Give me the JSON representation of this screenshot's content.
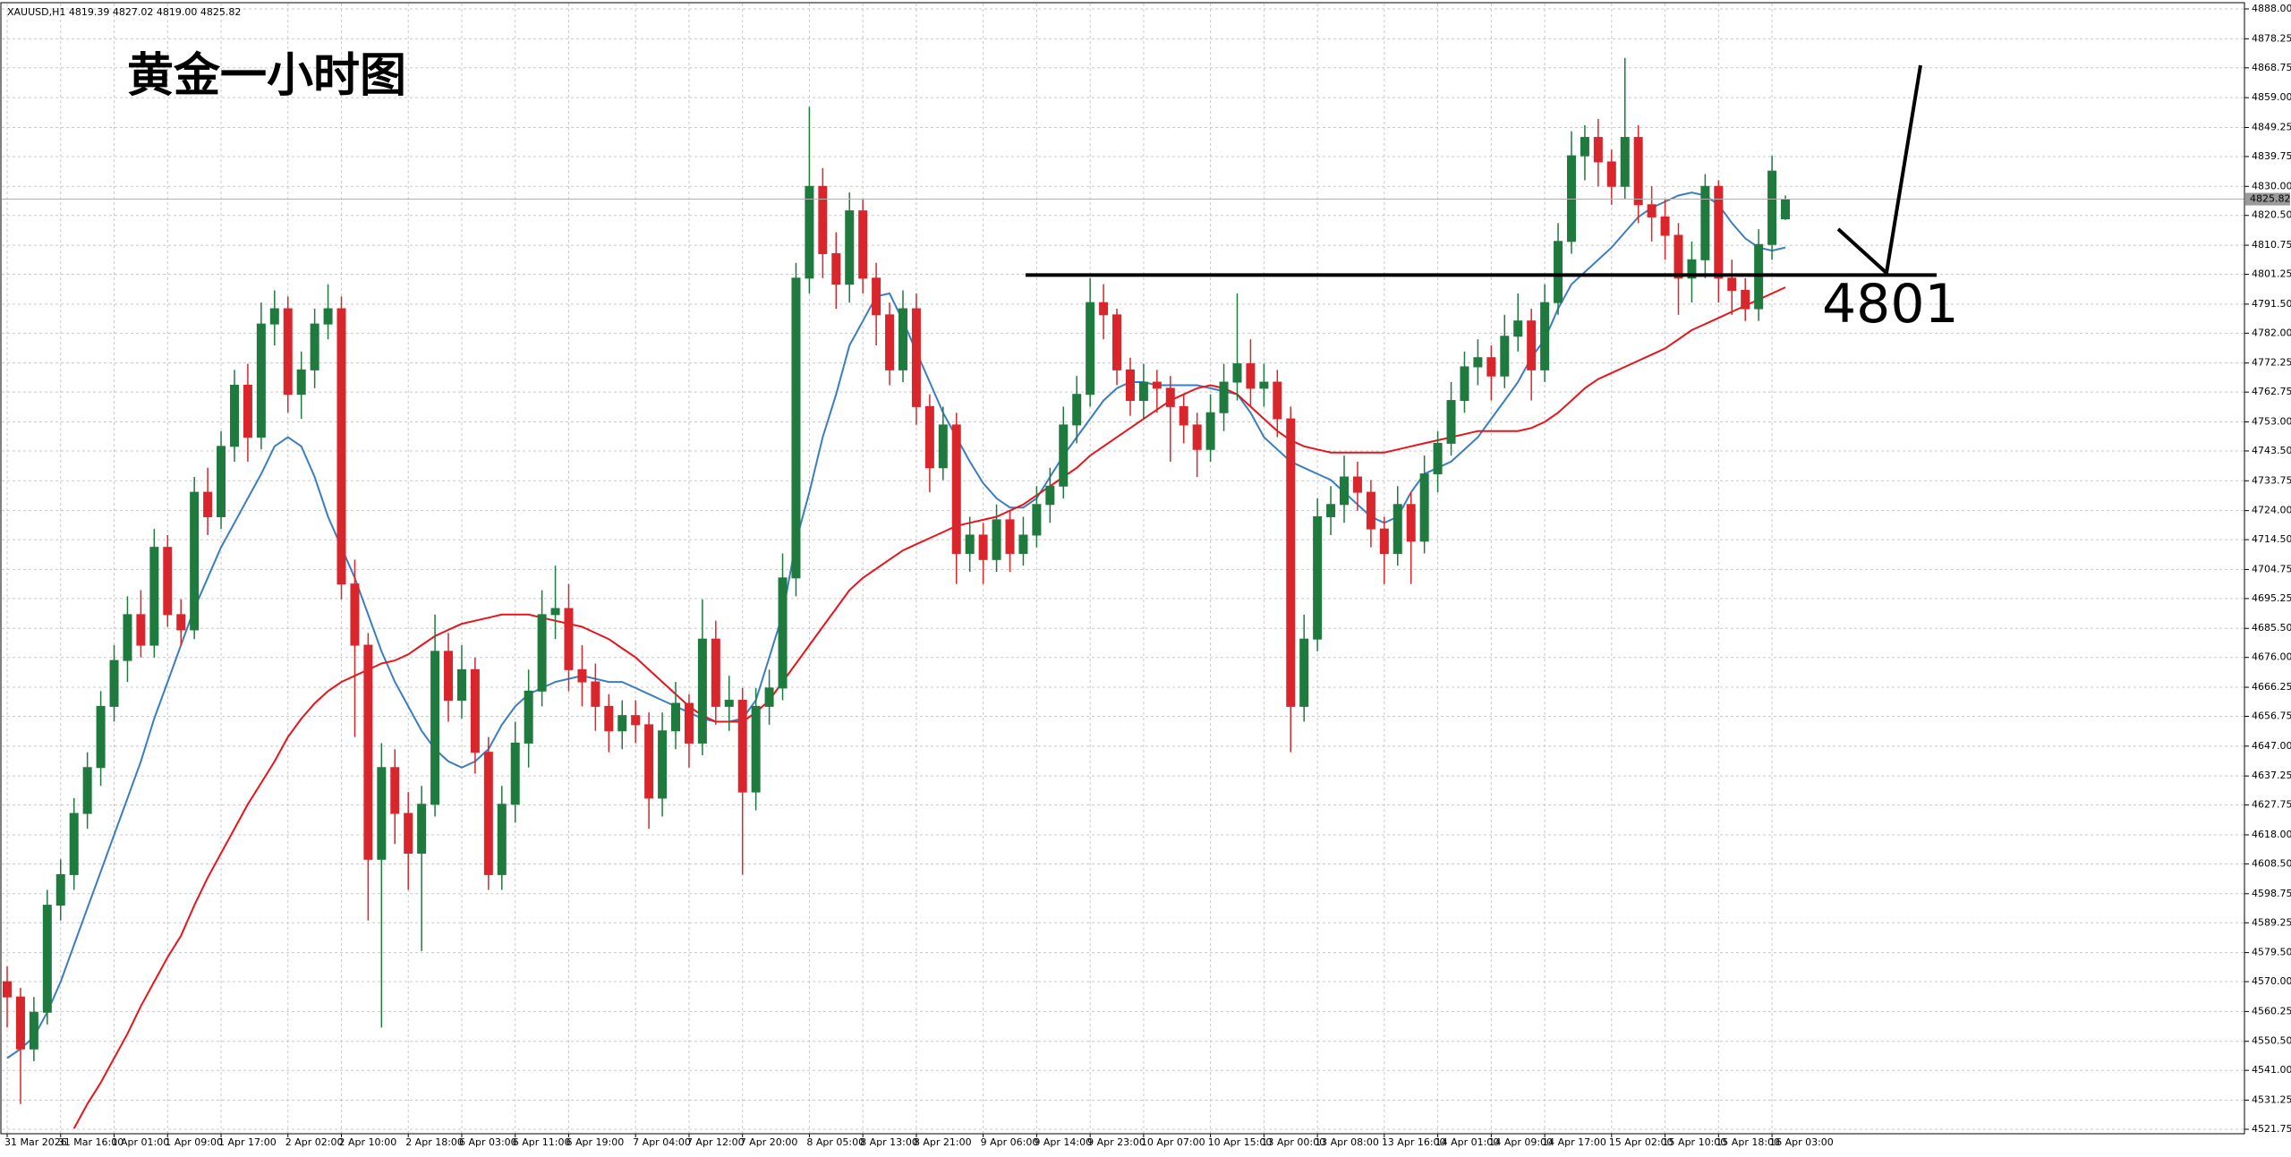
{
  "chart_data": {
    "type": "candlestick",
    "title": "黄金一小时图",
    "header": "XAUUSD,H1  4819.39 4827.02 4819.00 4825.82",
    "up_color": "#1f7a3e",
    "down_color": "#d8262c",
    "grid": true,
    "ylim": [
      4521.75,
      4888
    ],
    "yticks": [
      {
        "value": 4888,
        "label": "4888.00"
      },
      {
        "value": 4878.25,
        "label": "4878.25"
      },
      {
        "value": 4868.75,
        "label": "4868.75"
      },
      {
        "value": 4859,
        "label": "4859.00"
      },
      {
        "value": 4849.25,
        "label": "4849.25"
      },
      {
        "value": 4839.75,
        "label": "4839.75"
      },
      {
        "value": 4830,
        "label": "4830.00"
      },
      {
        "value": 4820.5,
        "label": "4820.50"
      },
      {
        "value": 4810.75,
        "label": "4810.75"
      },
      {
        "value": 4801.25,
        "label": "4801.25"
      },
      {
        "value": 4791.5,
        "label": "4791.50"
      },
      {
        "value": 4782,
        "label": "4782.00"
      },
      {
        "value": 4772.25,
        "label": "4772.25"
      },
      {
        "value": 4762.75,
        "label": "4762.75"
      },
      {
        "value": 4753,
        "label": "4753.00"
      },
      {
        "value": 4743.5,
        "label": "4743.50"
      },
      {
        "value": 4733.75,
        "label": "4733.75"
      },
      {
        "value": 4724,
        "label": "4724.00"
      },
      {
        "value": 4714.5,
        "label": "4714.50"
      },
      {
        "value": 4704.75,
        "label": "4704.75"
      },
      {
        "value": 4695.25,
        "label": "4695.25"
      },
      {
        "value": 4685.5,
        "label": "4685.50"
      },
      {
        "value": 4676,
        "label": "4676.00"
      },
      {
        "value": 4666.25,
        "label": "4666.25"
      },
      {
        "value": 4656.75,
        "label": "4656.75"
      },
      {
        "value": 4647,
        "label": "4647.00"
      },
      {
        "value": 4637.25,
        "label": "4637.25"
      },
      {
        "value": 4627.75,
        "label": "4627.75"
      },
      {
        "value": 4618,
        "label": "4618.00"
      },
      {
        "value": 4608.5,
        "label": "4608.50"
      },
      {
        "value": 4598.75,
        "label": "4598.75"
      },
      {
        "value": 4589.25,
        "label": "4589.25"
      },
      {
        "value": 4579.5,
        "label": "4579.50"
      },
      {
        "value": 4570,
        "label": "4570.00"
      },
      {
        "value": 4560.25,
        "label": "4560.25"
      },
      {
        "value": 4550.5,
        "label": "4550.50"
      },
      {
        "value": 4541,
        "label": "4541.00"
      },
      {
        "value": 4531.25,
        "label": "4531.25"
      },
      {
        "value": 4521.75,
        "label": "4521.75"
      }
    ],
    "categories": [
      "31 Mar 2026",
      null,
      null,
      null,
      "31 Mar 16:00",
      null,
      null,
      null,
      "1 Apr 01:00",
      null,
      null,
      null,
      "1 Apr 09:00",
      null,
      null,
      null,
      "1 Apr 17:00",
      null,
      null,
      null,
      null,
      "2 Apr 02:00",
      null,
      null,
      null,
      "2 Apr 10:00",
      null,
      null,
      null,
      null,
      "2 Apr 18:00",
      null,
      null,
      null,
      "6 Apr 03:00",
      null,
      null,
      null,
      "6 Apr 11:00",
      null,
      null,
      null,
      "6 Apr 19:00",
      null,
      null,
      null,
      null,
      "7 Apr 04:00",
      null,
      null,
      null,
      "7 Apr 12:00",
      null,
      null,
      null,
      "7 Apr 20:00",
      null,
      null,
      null,
      null,
      "8 Apr 05:00",
      null,
      null,
      null,
      "8 Apr 13:00",
      null,
      null,
      null,
      "8 Apr 21:00",
      null,
      null,
      null,
      null,
      "9 Apr 06:00",
      null,
      null,
      null,
      "9 Apr 14:00",
      null,
      null,
      null,
      "9 Apr 23:00",
      null,
      null,
      null,
      "10 Apr 07:00",
      null,
      null,
      null,
      null,
      "10 Apr 15:00",
      null,
      null,
      null,
      "13 Apr 00:00",
      null,
      null,
      null,
      "13 Apr 08:00",
      null,
      null,
      null,
      null,
      "13 Apr 16:00",
      null,
      null,
      null,
      "14 Apr 01:00",
      null,
      null,
      null,
      "14 Apr 09:00",
      null,
      null,
      null,
      "14 Apr 17:00",
      null,
      null,
      null,
      null,
      "15 Apr 02:00",
      null,
      null,
      null,
      "15 Apr 10:00",
      null,
      null,
      null,
      "15 Apr 18:00",
      null,
      null,
      null,
      "16 Apr 03:00",
      null
    ],
    "ohlc": [
      [
        4570,
        4575,
        4555,
        4565
      ],
      [
        4565,
        4568,
        4530,
        4548
      ],
      [
        4548,
        4565,
        4544,
        4560
      ],
      [
        4560,
        4600,
        4556,
        4595
      ],
      [
        4595,
        4610,
        4590,
        4605
      ],
      [
        4605,
        4630,
        4600,
        4625
      ],
      [
        4625,
        4645,
        4620,
        4640
      ],
      [
        4640,
        4665,
        4634,
        4660
      ],
      [
        4660,
        4680,
        4655,
        4675
      ],
      [
        4675,
        4696,
        4668,
        4690
      ],
      [
        4690,
        4698,
        4676,
        4680
      ],
      [
        4680,
        4718,
        4676,
        4712
      ],
      [
        4712,
        4716,
        4686,
        4690
      ],
      [
        4690,
        4695,
        4680,
        4685
      ],
      [
        4685,
        4735,
        4682,
        4730
      ],
      [
        4730,
        4738,
        4716,
        4722
      ],
      [
        4722,
        4750,
        4718,
        4745
      ],
      [
        4745,
        4770,
        4740,
        4765
      ],
      [
        4765,
        4772,
        4740,
        4748
      ],
      [
        4748,
        4792,
        4744,
        4785
      ],
      [
        4785,
        4796,
        4778,
        4790
      ],
      [
        4790,
        4794,
        4756,
        4762
      ],
      [
        4762,
        4776,
        4754,
        4770
      ],
      [
        4770,
        4790,
        4764,
        4785
      ],
      [
        4785,
        4798,
        4780,
        4790
      ],
      [
        4790,
        4794,
        4695,
        4700
      ],
      [
        4700,
        4708,
        4650,
        4680
      ],
      [
        4680,
        4684,
        4590,
        4610
      ],
      [
        4610,
        4648,
        4555,
        4640
      ],
      [
        4640,
        4646,
        4615,
        4625
      ],
      [
        4625,
        4632,
        4600,
        4612
      ],
      [
        4612,
        4634,
        4580,
        4628
      ],
      [
        4628,
        4690,
        4624,
        4678
      ],
      [
        4678,
        4684,
        4655,
        4662
      ],
      [
        4662,
        4680,
        4656,
        4672
      ],
      [
        4672,
        4676,
        4638,
        4645
      ],
      [
        4645,
        4650,
        4600,
        4605
      ],
      [
        4605,
        4634,
        4600,
        4628
      ],
      [
        4628,
        4655,
        4622,
        4648
      ],
      [
        4648,
        4672,
        4640,
        4665
      ],
      [
        4665,
        4698,
        4660,
        4690
      ],
      [
        4690,
        4706,
        4682,
        4692
      ],
      [
        4692,
        4700,
        4665,
        4672
      ],
      [
        4672,
        4680,
        4660,
        4668
      ],
      [
        4668,
        4674,
        4652,
        4660
      ],
      [
        4660,
        4664,
        4645,
        4652
      ],
      [
        4652,
        4662,
        4646,
        4657
      ],
      [
        4657,
        4662,
        4648,
        4654
      ],
      [
        4654,
        4658,
        4620,
        4630
      ],
      [
        4630,
        4658,
        4624,
        4652
      ],
      [
        4652,
        4668,
        4646,
        4661
      ],
      [
        4661,
        4664,
        4640,
        4648
      ],
      [
        4648,
        4695,
        4644,
        4682
      ],
      [
        4682,
        4688,
        4654,
        4660
      ],
      [
        4660,
        4670,
        4652,
        4662
      ],
      [
        4662,
        4666,
        4605,
        4632
      ],
      [
        4632,
        4666,
        4626,
        4660
      ],
      [
        4660,
        4672,
        4654,
        4666
      ],
      [
        4666,
        4710,
        4662,
        4702
      ],
      [
        4702,
        4805,
        4696,
        4800
      ],
      [
        4800,
        4856,
        4795,
        4830
      ],
      [
        4830,
        4836,
        4800,
        4808
      ],
      [
        4808,
        4815,
        4790,
        4798
      ],
      [
        4798,
        4828,
        4792,
        4822
      ],
      [
        4822,
        4826,
        4795,
        4800
      ],
      [
        4800,
        4805,
        4778,
        4788
      ],
      [
        4788,
        4792,
        4765,
        4770
      ],
      [
        4770,
        4796,
        4766,
        4790
      ],
      [
        4790,
        4795,
        4752,
        4758
      ],
      [
        4758,
        4762,
        4730,
        4738
      ],
      [
        4738,
        4758,
        4734,
        4752
      ],
      [
        4752,
        4756,
        4700,
        4710
      ],
      [
        4710,
        4722,
        4704,
        4716
      ],
      [
        4716,
        4720,
        4700,
        4708
      ],
      [
        4708,
        4726,
        4704,
        4721
      ],
      [
        4721,
        4724,
        4704,
        4710
      ],
      [
        4710,
        4722,
        4706,
        4716
      ],
      [
        4716,
        4732,
        4712,
        4726
      ],
      [
        4726,
        4738,
        4720,
        4732
      ],
      [
        4732,
        4758,
        4728,
        4752
      ],
      [
        4752,
        4768,
        4746,
        4762
      ],
      [
        4762,
        4800,
        4758,
        4792
      ],
      [
        4792,
        4798,
        4780,
        4788
      ],
      [
        4788,
        4790,
        4765,
        4770
      ],
      [
        4770,
        4774,
        4755,
        4760
      ],
      [
        4760,
        4772,
        4754,
        4766
      ],
      [
        4766,
        4770,
        4756,
        4764
      ],
      [
        4764,
        4768,
        4740,
        4758
      ],
      [
        4758,
        4762,
        4746,
        4752
      ],
      [
        4752,
        4756,
        4735,
        4744
      ],
      [
        4744,
        4762,
        4740,
        4756
      ],
      [
        4756,
        4772,
        4750,
        4766
      ],
      [
        4766,
        4795,
        4760,
        4772
      ],
      [
        4772,
        4780,
        4758,
        4764
      ],
      [
        4764,
        4772,
        4758,
        4766
      ],
      [
        4766,
        4770,
        4748,
        4754
      ],
      [
        4754,
        4758,
        4645,
        4660
      ],
      [
        4660,
        4690,
        4655,
        4682
      ],
      [
        4682,
        4728,
        4678,
        4722
      ],
      [
        4722,
        4732,
        4716,
        4726
      ],
      [
        4726,
        4742,
        4720,
        4735
      ],
      [
        4735,
        4740,
        4724,
        4730
      ],
      [
        4730,
        4734,
        4712,
        4718
      ],
      [
        4718,
        4722,
        4700,
        4710
      ],
      [
        4710,
        4732,
        4706,
        4726
      ],
      [
        4726,
        4730,
        4700,
        4714
      ],
      [
        4714,
        4742,
        4710,
        4736
      ],
      [
        4736,
        4750,
        4730,
        4746
      ],
      [
        4746,
        4766,
        4742,
        4760
      ],
      [
        4760,
        4776,
        4756,
        4771
      ],
      [
        4771,
        4780,
        4765,
        4774
      ],
      [
        4774,
        4778,
        4760,
        4768
      ],
      [
        4768,
        4788,
        4764,
        4781
      ],
      [
        4781,
        4795,
        4776,
        4786
      ],
      [
        4786,
        4790,
        4760,
        4770
      ],
      [
        4770,
        4798,
        4766,
        4792
      ],
      [
        4792,
        4818,
        4788,
        4812
      ],
      [
        4812,
        4848,
        4808,
        4840
      ],
      [
        4840,
        4850,
        4832,
        4846
      ],
      [
        4846,
        4852,
        4830,
        4838
      ],
      [
        4838,
        4842,
        4824,
        4830
      ],
      [
        4830,
        4872,
        4826,
        4846
      ],
      [
        4846,
        4850,
        4818,
        4824
      ],
      [
        4824,
        4830,
        4812,
        4820
      ],
      [
        4820,
        4826,
        4806,
        4814
      ],
      [
        4814,
        4818,
        4788,
        4800
      ],
      [
        4800,
        4812,
        4792,
        4806
      ],
      [
        4806,
        4834,
        4800,
        4830
      ],
      [
        4830,
        4832,
        4792,
        4800
      ],
      [
        4800,
        4806,
        4788,
        4796
      ],
      [
        4796,
        4800,
        4786,
        4790
      ],
      [
        4790,
        4816,
        4786,
        4811
      ],
      [
        4811,
        4840,
        4806,
        4835
      ],
      [
        4819.39,
        4827.02,
        4819,
        4825.82
      ]
    ],
    "series": [
      {
        "color": "#3b7dc0",
        "values": [
          4545,
          4548,
          4552,
          4560,
          4570,
          4582,
          4594,
          4606,
          4618,
          4630,
          4642,
          4656,
          4668,
          4680,
          4692,
          4702,
          4712,
          4720,
          4728,
          4736,
          4745,
          4748,
          4745,
          4735,
          4722,
          4712,
          4702,
          4690,
          4678,
          4668,
          4660,
          4652,
          4646,
          4642,
          4640,
          4642,
          4646,
          4654,
          4660,
          4664,
          4666,
          4668,
          4669,
          4670,
          4669,
          4668,
          4668,
          4666,
          4664,
          4662,
          4660,
          4658,
          4656,
          4655,
          4655,
          4656,
          4662,
          4676,
          4690,
          4714,
          4730,
          4748,
          4762,
          4778,
          4786,
          4794,
          4795,
          4786,
          4776,
          4766,
          4756,
          4748,
          4740,
          4733,
          4728,
          4725,
          4725,
          4728,
          4735,
          4742,
          4748,
          4754,
          4760,
          4764,
          4766,
          4766,
          4765,
          4765,
          4765,
          4765,
          4764,
          4763,
          4762,
          4756,
          4748,
          4744,
          4740,
          4738,
          4736,
          4734,
          4730,
          4726,
          4722,
          4720,
          4722,
          4730,
          4736,
          4738,
          4740,
          4744,
          4748,
          4754,
          4760,
          4766,
          4774,
          4780,
          4790,
          4798,
          4802,
          4806,
          4810,
          4815,
          4820,
          4823,
          4825,
          4827,
          4828,
          4827,
          4824,
          4818,
          4813,
          4810,
          4809,
          4810
        ]
      },
      {
        "color": "#e8141c",
        "values": [
          null,
          null,
          null,
          null,
          null,
          4522,
          4530,
          4537,
          4545,
          4553,
          4562,
          4570,
          4578,
          4585,
          4595,
          4604,
          4612,
          4620,
          4628,
          4635,
          4642,
          4650,
          4656,
          4661,
          4665,
          4668,
          4670,
          4672,
          4674,
          4675,
          4677,
          4680,
          4683,
          4685,
          4687,
          4688,
          4689,
          4690,
          4690,
          4690,
          4689,
          4688,
          4687,
          4686,
          4684,
          4682,
          4679,
          4676,
          4672,
          4668,
          4664,
          4660,
          4657,
          4655,
          4655,
          4655,
          4658,
          4662,
          4668,
          4674,
          4680,
          4686,
          4692,
          4698,
          4702,
          4705,
          4708,
          4711,
          4713,
          4715,
          4717,
          4719,
          4720,
          4721,
          4722,
          4724,
          4726,
          4729,
          4732,
          4735,
          4738,
          4742,
          4745,
          4748,
          4751,
          4754,
          4757,
          4760,
          4762,
          4764,
          4765,
          4764,
          4762,
          4758,
          4754,
          4750,
          4747,
          4745,
          4744,
          4743,
          4743,
          4743,
          4743,
          4743,
          4744,
          4745,
          4746,
          4747,
          4748,
          4749,
          4750,
          4750,
          4750,
          4750,
          4751,
          4753,
          4756,
          4760,
          4764,
          4767,
          4769,
          4771,
          4773,
          4775,
          4777,
          4780,
          4783,
          4785,
          4787,
          4789,
          4791,
          4793,
          4795,
          4797
        ]
      }
    ],
    "annotation_level": 4801
  }
}
